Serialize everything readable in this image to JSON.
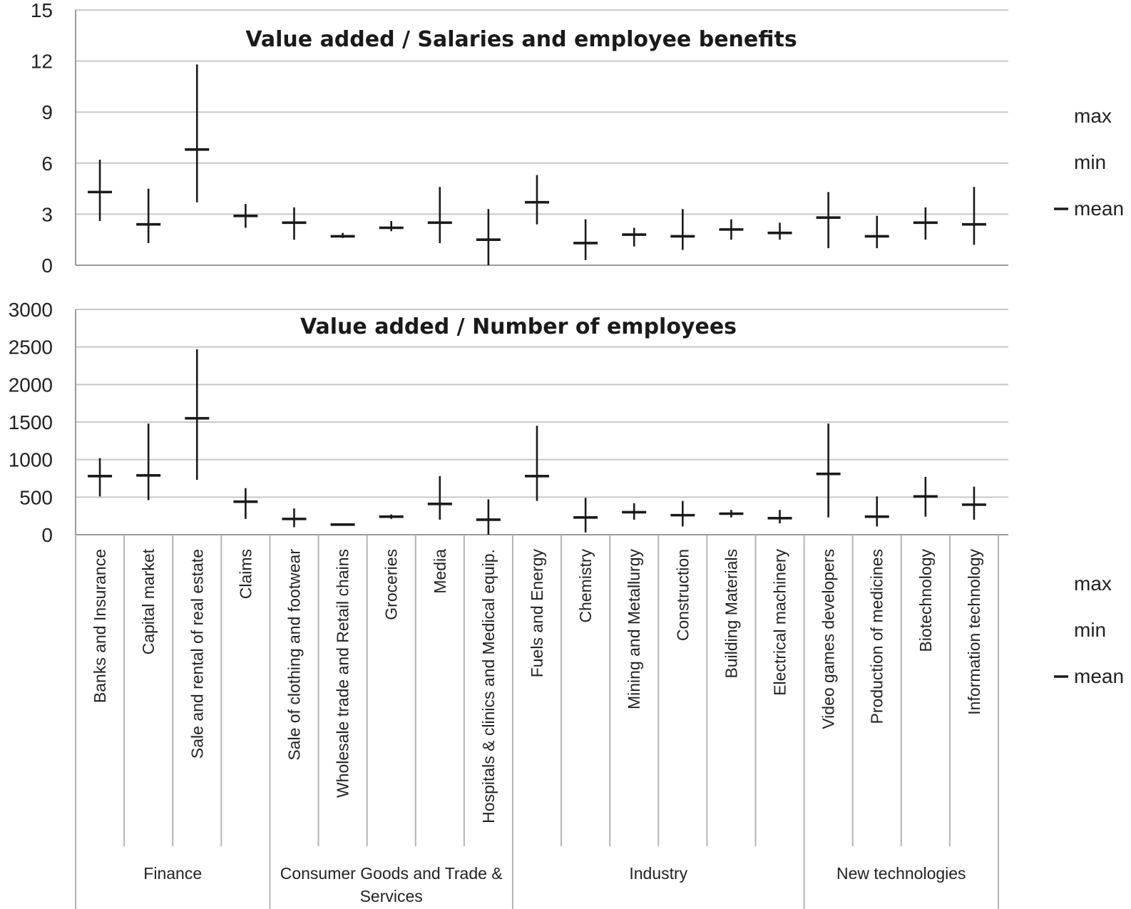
{
  "legend": {
    "items": [
      {
        "label": "max"
      },
      {
        "label": "min"
      },
      {
        "label": "mean"
      }
    ]
  },
  "categories": [
    "Banks and Insurance",
    "Capital market",
    "Sale and rental of real estate",
    "Claims",
    "Sale of clothing and footwear",
    "Wholesale trade and Retail chains",
    "Groceries",
    "Media",
    "Hospitals & clinics and Medical equip.",
    "Fuels and Energy",
    "Chemistry",
    "Mining and Metallurgy",
    "Construction",
    "Building Materials",
    "Electrical machinery",
    "Video games developers",
    "Production of medicines",
    "Biotechnology",
    "Information technology"
  ],
  "groups": [
    {
      "label": "Finance",
      "start": 0,
      "end": 3
    },
    {
      "label": "Consumer Goods and Trade &",
      "label2": "Services",
      "start": 4,
      "end": 8
    },
    {
      "label": "Industry",
      "start": 9,
      "end": 14
    },
    {
      "label": "New technologies",
      "start": 15,
      "end": 18
    }
  ],
  "chart_data": [
    {
      "type": "error-bar",
      "title": "Value added / Salaries and employee benefits",
      "ylim": [
        0,
        15
      ],
      "yticks": [
        "0",
        "3",
        "6",
        "9",
        "12",
        "15"
      ],
      "grid": true,
      "legend": "right",
      "max": [
        6.2,
        4.5,
        11.8,
        3.6,
        3.4,
        1.9,
        2.6,
        4.6,
        3.3,
        5.3,
        2.7,
        2.2,
        3.3,
        2.7,
        2.5,
        4.3,
        2.9,
        3.4,
        4.6
      ],
      "min": [
        2.6,
        1.3,
        3.7,
        2.2,
        1.5,
        1.6,
        2.0,
        1.3,
        0.0,
        2.4,
        0.3,
        1.1,
        0.9,
        1.5,
        1.5,
        1.0,
        1.0,
        1.5,
        1.2
      ],
      "mean": [
        4.3,
        2.4,
        6.8,
        2.9,
        2.5,
        1.7,
        2.2,
        2.5,
        1.5,
        3.7,
        1.3,
        1.8,
        1.7,
        2.1,
        1.9,
        2.8,
        1.7,
        2.5,
        2.4
      ]
    },
    {
      "type": "error-bar",
      "title": "Value added / Number of employees",
      "ylim": [
        0,
        3000
      ],
      "yticks": [
        "0",
        "500",
        "1000",
        "1500",
        "2000",
        "2500",
        "3000"
      ],
      "grid": true,
      "legend": "right",
      "max": [
        1020,
        1480,
        2470,
        620,
        350,
        150,
        270,
        780,
        470,
        1450,
        490,
        420,
        450,
        330,
        330,
        1480,
        510,
        770,
        640
      ],
      "min": [
        510,
        460,
        730,
        210,
        100,
        130,
        210,
        200,
        0,
        450,
        30,
        200,
        110,
        230,
        150,
        230,
        110,
        240,
        200
      ],
      "mean": [
        780,
        790,
        1550,
        440,
        210,
        135,
        240,
        410,
        200,
        780,
        230,
        300,
        260,
        280,
        220,
        810,
        240,
        510,
        400
      ]
    }
  ]
}
